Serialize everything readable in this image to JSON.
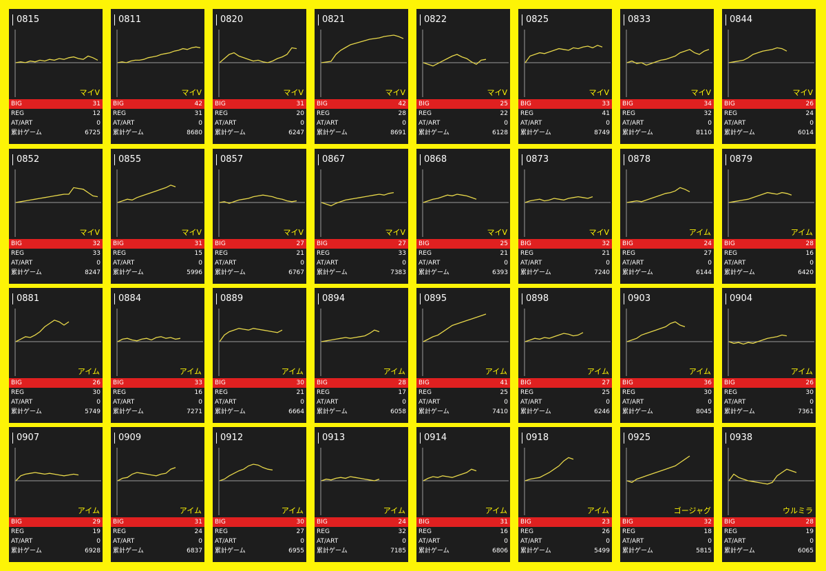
{
  "labels": {
    "big": "BIG",
    "reg": "REG",
    "at": "AT/ART",
    "total": "累計ゲーム"
  },
  "colors": {
    "background": "#fdf406",
    "card": "#1d1d1d",
    "big_bar": "#e02020",
    "line": "#e8d84a",
    "model_text": "#fdf406"
  },
  "machines": [
    {
      "num": "0815",
      "model": "マイV",
      "big": "31",
      "reg": "12",
      "at": "0",
      "total": "6725",
      "trend": [
        0,
        1,
        0,
        2,
        1,
        3,
        2,
        4,
        3,
        5,
        4,
        6,
        7,
        5,
        4,
        8,
        6,
        3
      ]
    },
    {
      "num": "0811",
      "model": "マイV",
      "big": "42",
      "reg": "31",
      "at": "0",
      "total": "8680",
      "trend": [
        0,
        1,
        0,
        2,
        3,
        3,
        4,
        6,
        7,
        8,
        10,
        11,
        12,
        14,
        15,
        17,
        16,
        18,
        19,
        18
      ]
    },
    {
      "num": "0820",
      "model": "マイV",
      "big": "31",
      "reg": "20",
      "at": "0",
      "total": "6247",
      "trend": [
        0,
        5,
        10,
        12,
        8,
        6,
        4,
        2,
        3,
        1,
        0,
        2,
        5,
        7,
        10,
        18,
        17
      ]
    },
    {
      "num": "0821",
      "model": "マイV",
      "big": "42",
      "reg": "28",
      "at": "0",
      "total": "8691",
      "trend": [
        0,
        1,
        2,
        12,
        18,
        22,
        26,
        28,
        30,
        32,
        34,
        35,
        36,
        38,
        39,
        40,
        38,
        35
      ]
    },
    {
      "num": "0822",
      "model": "マイV",
      "big": "25",
      "reg": "22",
      "at": "0",
      "total": "6128",
      "trend": [
        0,
        -2,
        -4,
        -1,
        2,
        5,
        8,
        10,
        7,
        5,
        1,
        -2,
        3,
        4
      ]
    },
    {
      "num": "0825",
      "model": "マイV",
      "big": "33",
      "reg": "41",
      "at": "0",
      "total": "8749",
      "trend": [
        0,
        8,
        10,
        12,
        11,
        13,
        15,
        17,
        16,
        15,
        18,
        17,
        19,
        20,
        18,
        21,
        19
      ]
    },
    {
      "num": "0833",
      "model": "マイV",
      "big": "34",
      "reg": "32",
      "at": "0",
      "total": "8110",
      "trend": [
        0,
        2,
        -1,
        0,
        -3,
        -1,
        1,
        3,
        4,
        6,
        8,
        12,
        14,
        16,
        12,
        10,
        14,
        16
      ]
    },
    {
      "num": "0844",
      "model": "マイV",
      "big": "26",
      "reg": "24",
      "at": "0",
      "total": "6014",
      "trend": [
        0,
        1,
        2,
        3,
        6,
        10,
        12,
        14,
        15,
        16,
        18,
        17,
        14
      ]
    }
  ],
  "machines_row2": [
    {
      "num": "0852",
      "model": "マイV",
      "big": "32",
      "reg": "33",
      "at": "0",
      "total": "8247",
      "trend": [
        0,
        1,
        2,
        3,
        4,
        5,
        6,
        7,
        8,
        9,
        10,
        10,
        18,
        17,
        16,
        12,
        8,
        7
      ]
    },
    {
      "num": "0855",
      "model": "マイV",
      "big": "31",
      "reg": "15",
      "at": "0",
      "total": "5996",
      "trend": [
        0,
        2,
        4,
        3,
        6,
        8,
        10,
        12,
        14,
        16,
        18,
        21,
        19
      ]
    },
    {
      "num": "0857",
      "model": "マイV",
      "big": "27",
      "reg": "21",
      "at": "0",
      "total": "6767",
      "trend": [
        0,
        1,
        -1,
        1,
        3,
        4,
        5,
        7,
        8,
        9,
        8,
        7,
        5,
        4,
        2,
        1,
        2
      ]
    },
    {
      "num": "0867",
      "model": "マイV",
      "big": "27",
      "reg": "33",
      "at": "0",
      "total": "7383",
      "trend": [
        0,
        -2,
        -4,
        -1,
        1,
        3,
        4,
        5,
        6,
        7,
        8,
        9,
        10,
        9,
        11,
        12
      ]
    },
    {
      "num": "0868",
      "model": "マイV",
      "big": "25",
      "reg": "21",
      "at": "0",
      "total": "6393",
      "trend": [
        0,
        2,
        4,
        5,
        7,
        9,
        8,
        10,
        9,
        8,
        6,
        4
      ]
    },
    {
      "num": "0873",
      "model": "マイV",
      "big": "32",
      "reg": "21",
      "at": "0",
      "total": "7240",
      "trend": [
        0,
        2,
        3,
        4,
        2,
        3,
        5,
        4,
        3,
        5,
        6,
        7,
        6,
        5,
        7
      ]
    },
    {
      "num": "0878",
      "model": "アイム",
      "big": "24",
      "reg": "27",
      "at": "0",
      "total": "6144",
      "trend": [
        0,
        1,
        2,
        1,
        3,
        5,
        7,
        9,
        11,
        12,
        14,
        18,
        16,
        13
      ]
    },
    {
      "num": "0879",
      "model": "アイム",
      "big": "28",
      "reg": "16",
      "at": "0",
      "total": "6420",
      "trend": [
        0,
        1,
        2,
        3,
        4,
        6,
        8,
        10,
        12,
        11,
        10,
        12,
        11,
        9
      ]
    }
  ],
  "machines_row3": [
    {
      "num": "0881",
      "model": "アイム",
      "big": "26",
      "reg": "30",
      "at": "0",
      "total": "5749",
      "trend": [
        0,
        3,
        6,
        5,
        8,
        12,
        18,
        22,
        26,
        24,
        20,
        24
      ]
    },
    {
      "num": "0884",
      "model": "アイム",
      "big": "33",
      "reg": "16",
      "at": "0",
      "total": "7271",
      "trend": [
        0,
        3,
        4,
        2,
        1,
        3,
        4,
        2,
        5,
        6,
        4,
        5,
        3,
        4
      ]
    },
    {
      "num": "0889",
      "model": "アイム",
      "big": "30",
      "reg": "21",
      "at": "0",
      "total": "6664",
      "trend": [
        0,
        8,
        12,
        14,
        16,
        15,
        14,
        16,
        15,
        14,
        13,
        12,
        11,
        14
      ]
    },
    {
      "num": "0894",
      "model": "アイム",
      "big": "28",
      "reg": "17",
      "at": "0",
      "total": "6058",
      "trend": [
        0,
        1,
        2,
        3,
        4,
        5,
        4,
        5,
        6,
        7,
        10,
        14,
        12
      ]
    },
    {
      "num": "0895",
      "model": "アイム",
      "big": "41",
      "reg": "25",
      "at": "0",
      "total": "7410",
      "trend": [
        0,
        3,
        6,
        8,
        12,
        16,
        20,
        22,
        24,
        26,
        28,
        30,
        32,
        34
      ]
    },
    {
      "num": "0898",
      "model": "アイム",
      "big": "27",
      "reg": "25",
      "at": "0",
      "total": "6246",
      "trend": [
        0,
        2,
        4,
        3,
        5,
        4,
        6,
        8,
        10,
        9,
        7,
        8,
        11
      ]
    },
    {
      "num": "0903",
      "model": "アイム",
      "big": "36",
      "reg": "30",
      "at": "0",
      "total": "8045",
      "trend": [
        0,
        2,
        4,
        8,
        10,
        12,
        14,
        16,
        18,
        22,
        24,
        20,
        18
      ]
    },
    {
      "num": "0904",
      "model": "アイム",
      "big": "26",
      "reg": "30",
      "at": "0",
      "total": "7361",
      "trend": [
        0,
        -2,
        -1,
        -3,
        -1,
        -2,
        0,
        2,
        4,
        5,
        6,
        8,
        7
      ]
    }
  ],
  "machines_row4": [
    {
      "num": "0907",
      "model": "アイム",
      "big": "29",
      "reg": "19",
      "at": "0",
      "total": "6928",
      "trend": [
        0,
        6,
        8,
        9,
        10,
        9,
        8,
        9,
        8,
        7,
        6,
        7,
        8,
        7
      ]
    },
    {
      "num": "0909",
      "model": "アイム",
      "big": "31",
      "reg": "24",
      "at": "0",
      "total": "6837",
      "trend": [
        0,
        3,
        4,
        8,
        10,
        9,
        8,
        7,
        6,
        8,
        9,
        14,
        16
      ]
    },
    {
      "num": "0912",
      "model": "アイム",
      "big": "30",
      "reg": "27",
      "at": "0",
      "total": "6955",
      "trend": [
        0,
        2,
        6,
        9,
        12,
        14,
        18,
        20,
        19,
        16,
        14,
        13
      ]
    },
    {
      "num": "0913",
      "model": "アイム",
      "big": "24",
      "reg": "32",
      "at": "0",
      "total": "7185",
      "trend": [
        0,
        2,
        1,
        3,
        4,
        3,
        5,
        4,
        3,
        2,
        1,
        0,
        2
      ]
    },
    {
      "num": "0914",
      "model": "アイム",
      "big": "31",
      "reg": "16",
      "at": "0",
      "total": "6806",
      "trend": [
        0,
        3,
        5,
        4,
        6,
        5,
        4,
        6,
        8,
        10,
        14,
        12
      ]
    },
    {
      "num": "0918",
      "model": "アイム",
      "big": "23",
      "reg": "26",
      "at": "0",
      "total": "5499",
      "trend": [
        0,
        2,
        3,
        4,
        7,
        10,
        14,
        18,
        24,
        28,
        26
      ]
    },
    {
      "num": "0925",
      "model": "ゴージャグ",
      "big": "32",
      "reg": "18",
      "at": "0",
      "total": "5815",
      "trend": [
        0,
        -2,
        2,
        4,
        6,
        8,
        10,
        12,
        14,
        16,
        18,
        22,
        26,
        30
      ]
    },
    {
      "num": "0938",
      "model": "ウルミラ",
      "big": "28",
      "reg": "19",
      "at": "0",
      "total": "6065",
      "trend": [
        0,
        8,
        4,
        2,
        0,
        -1,
        -2,
        -3,
        -4,
        -2,
        6,
        10,
        14,
        12,
        10
      ]
    }
  ]
}
